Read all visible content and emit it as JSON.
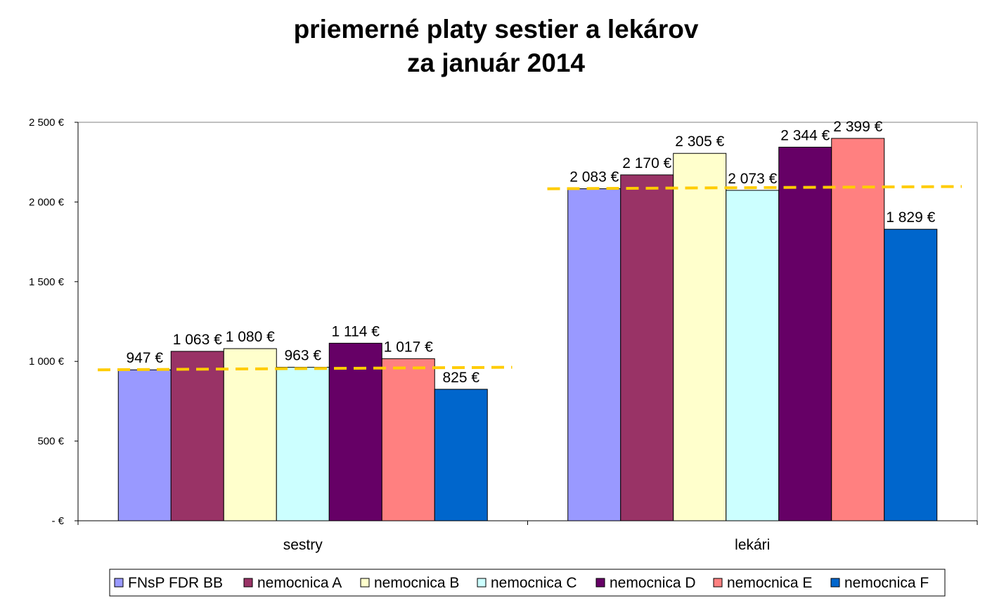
{
  "chart_data": {
    "type": "bar",
    "title": [
      "priemerné platy sestier a lekárov",
      "za január 2014"
    ],
    "xlabel": "",
    "ylabel": "",
    "ylim": [
      0,
      2500
    ],
    "y_ticks": [
      {
        "value": 0,
        "label": "-    €"
      },
      {
        "value": 500,
        "label": "500 €"
      },
      {
        "value": 1000,
        "label": "1 000 €"
      },
      {
        "value": 1500,
        "label": "1 500 €"
      },
      {
        "value": 2000,
        "label": "2 000 €"
      },
      {
        "value": 2500,
        "label": "2 500 €"
      }
    ],
    "categories": [
      "sestry",
      "lekári"
    ],
    "series": [
      {
        "name": "FNsP FDR BB",
        "color": "#9999FF",
        "values": [
          947,
          2083
        ],
        "labels": [
          "947 €",
          "2 083 €"
        ]
      },
      {
        "name": "nemocnica A",
        "color": "#993366",
        "values": [
          1063,
          2170
        ],
        "labels": [
          "1 063 €",
          "2 170 €"
        ]
      },
      {
        "name": "nemocnica B",
        "color": "#FFFFCC",
        "values": [
          1080,
          2305
        ],
        "labels": [
          "1 080 €",
          "2 305 €"
        ]
      },
      {
        "name": "nemocnica C",
        "color": "#CCFFFF",
        "values": [
          963,
          2073
        ],
        "labels": [
          "963 €",
          "2 073 €"
        ]
      },
      {
        "name": "nemocnica D",
        "color": "#660066",
        "values": [
          1114,
          2344
        ],
        "labels": [
          "1 114 €",
          "2 344 €"
        ]
      },
      {
        "name": "nemocnica E",
        "color": "#FF8080",
        "values": [
          1017,
          2399
        ],
        "labels": [
          "1 017 €",
          "2 399 €"
        ]
      },
      {
        "name": "nemocnica F",
        "color": "#0066CC",
        "values": [
          825,
          1829
        ],
        "labels": [
          "825 €",
          "1 829 €"
        ]
      }
    ],
    "trendlines": [
      {
        "category": "sestry",
        "color": "#FFCC00",
        "from": 947,
        "to": 963
      },
      {
        "category": "lekári",
        "color": "#FFCC00",
        "from": 2083,
        "to": 2097
      }
    ],
    "grid": false,
    "legend_position": "bottom"
  }
}
